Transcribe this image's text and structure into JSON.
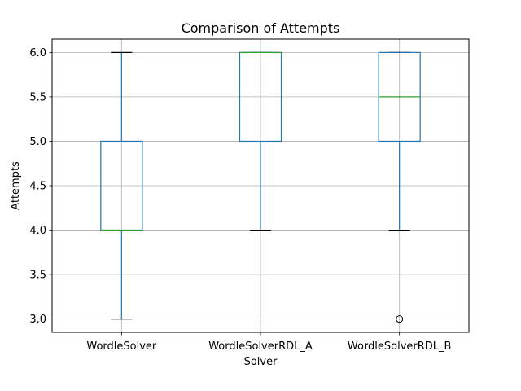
{
  "chart_data": {
    "type": "box",
    "title": "Comparison of Attempts",
    "xlabel": "Solver",
    "ylabel": "Attempts",
    "ylim": [
      2.85,
      6.15
    ],
    "yticks": [
      3.0,
      3.5,
      4.0,
      4.5,
      5.0,
      5.5,
      6.0
    ],
    "ytick_labels": [
      "3.0",
      "3.5",
      "4.0",
      "4.5",
      "5.0",
      "5.5",
      "6.0"
    ],
    "grid": true,
    "categories": [
      "WordleSolver",
      "WordleSolverRDL_A",
      "WordleSolverRDL_B"
    ],
    "boxes": [
      {
        "q1": 4.0,
        "median": 4.0,
        "q3": 5.0,
        "whisker_low": 3.0,
        "whisker_high": 6.0,
        "outliers": []
      },
      {
        "q1": 5.0,
        "median": 6.0,
        "q3": 6.0,
        "whisker_low": 4.0,
        "whisker_high": 6.0,
        "outliers": []
      },
      {
        "q1": 5.0,
        "median": 5.5,
        "q3": 6.0,
        "whisker_low": 4.0,
        "whisker_high": 6.0,
        "outliers": [
          3.0
        ]
      }
    ],
    "colors": {
      "box": "#1f77b4",
      "median": "#2ca02c",
      "grid": "#b0b0b0",
      "cap": "#000000"
    }
  }
}
